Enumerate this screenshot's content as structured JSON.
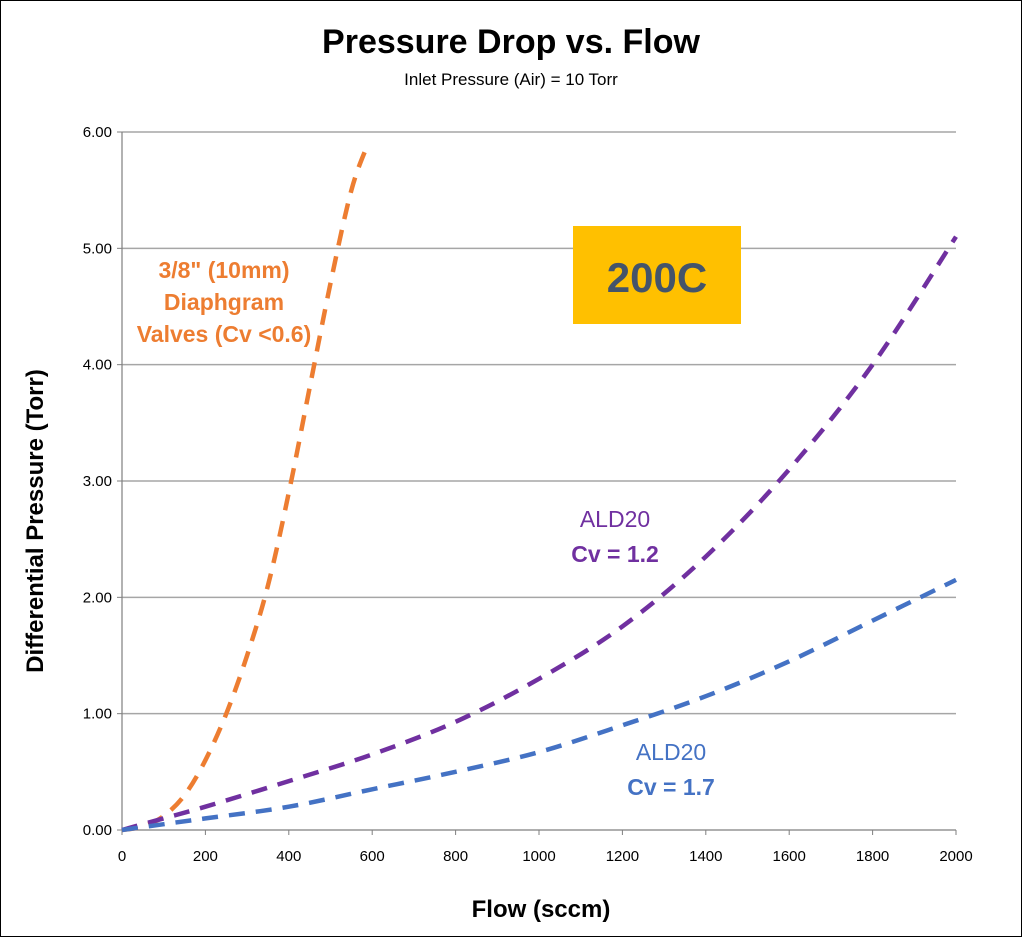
{
  "chart_data": {
    "type": "line",
    "title": "Pressure Drop vs. Flow",
    "subtitle": "Inlet Pressure (Air) = 10 Torr",
    "xlabel": "Flow (sccm)",
    "ylabel": "Differential Pressure (Torr)",
    "xlim": [
      0,
      2000
    ],
    "ylim": [
      0,
      6
    ],
    "x_ticks": [
      "0",
      "200",
      "400",
      "600",
      "800",
      "1000",
      "1200",
      "1400",
      "1600",
      "1800",
      "2000"
    ],
    "y_ticks": [
      "0.00",
      "1.00",
      "2.00",
      "3.00",
      "4.00",
      "5.00",
      "6.00"
    ],
    "grid": "horizontal",
    "badge": {
      "text": "200C",
      "background": "#ffc000",
      "color": "#44546a"
    },
    "series": [
      {
        "color": "#ed7d31",
        "label_lines": [
          "3/8\" (10mm)",
          "Diaphgram",
          "Valves (Cv <0.6)"
        ],
        "points": [
          [
            0,
            0
          ],
          [
            50,
            0.03
          ],
          [
            100,
            0.12
          ],
          [
            150,
            0.3
          ],
          [
            200,
            0.6
          ],
          [
            250,
            1.0
          ],
          [
            300,
            1.5
          ],
          [
            350,
            2.1
          ],
          [
            400,
            2.9
          ],
          [
            450,
            3.8
          ],
          [
            500,
            4.7
          ],
          [
            550,
            5.5
          ],
          [
            590,
            5.9
          ]
        ]
      },
      {
        "color": "#7030a0",
        "label_lines": [
          "ALD20",
          "Cv = 1.2"
        ],
        "points": [
          [
            0,
            0
          ],
          [
            100,
            0.1
          ],
          [
            200,
            0.2
          ],
          [
            400,
            0.42
          ],
          [
            600,
            0.65
          ],
          [
            800,
            0.93
          ],
          [
            1000,
            1.3
          ],
          [
            1200,
            1.75
          ],
          [
            1400,
            2.35
          ],
          [
            1600,
            3.1
          ],
          [
            1800,
            4.0
          ],
          [
            2000,
            5.1
          ]
        ]
      },
      {
        "color": "#4472c4",
        "label_lines": [
          "ALD20",
          "Cv = 1.7"
        ],
        "points": [
          [
            0,
            0
          ],
          [
            100,
            0.05
          ],
          [
            200,
            0.1
          ],
          [
            400,
            0.2
          ],
          [
            600,
            0.35
          ],
          [
            800,
            0.5
          ],
          [
            1000,
            0.67
          ],
          [
            1200,
            0.9
          ],
          [
            1400,
            1.15
          ],
          [
            1600,
            1.45
          ],
          [
            1800,
            1.8
          ],
          [
            2000,
            2.15
          ]
        ]
      }
    ]
  }
}
